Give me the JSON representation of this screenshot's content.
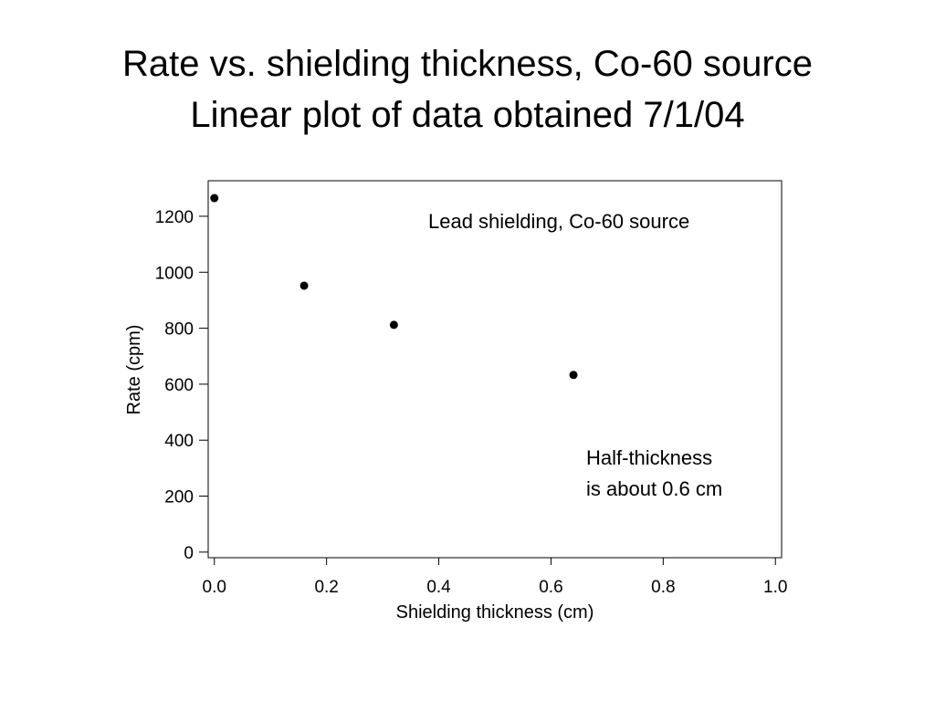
{
  "slide": {
    "title_line1": "Rate vs. shielding thickness, Co-60 source",
    "title_line2": "Linear plot of data obtained 7/1/04"
  },
  "chart_data": {
    "type": "scatter",
    "title": "Rate vs. shielding thickness, Co-60 source",
    "subtitle": "Linear plot of data obtained 7/1/04",
    "xlabel": "Shielding thickness (cm)",
    "ylabel": "Rate (cpm)",
    "xlim": [
      -0.011,
      1.011
    ],
    "ylim": [
      -20,
      1327
    ],
    "xticks": [
      0.0,
      0.2,
      0.4,
      0.6,
      0.8,
      1.0
    ],
    "xtick_labels": [
      "0.0",
      "0.2",
      "0.4",
      "0.6",
      "0.8",
      "1.0"
    ],
    "yticks": [
      0,
      200,
      400,
      600,
      800,
      1000,
      1200
    ],
    "ytick_labels": [
      "0",
      "200",
      "400",
      "600",
      "800",
      "1000",
      "1200"
    ],
    "grid": false,
    "series": [
      {
        "name": "Lead shielding, Co-60 source",
        "x": [
          0.0,
          0.16,
          0.32,
          0.64
        ],
        "y": [
          1265,
          952,
          812,
          633
        ]
      }
    ],
    "annotations": [
      {
        "text_lines": [
          "Lead shielding, Co-60 source"
        ]
      },
      {
        "text_lines": [
          "Half-thickness",
          "is about 0.6 cm"
        ]
      }
    ],
    "marker_color": "#000000"
  }
}
